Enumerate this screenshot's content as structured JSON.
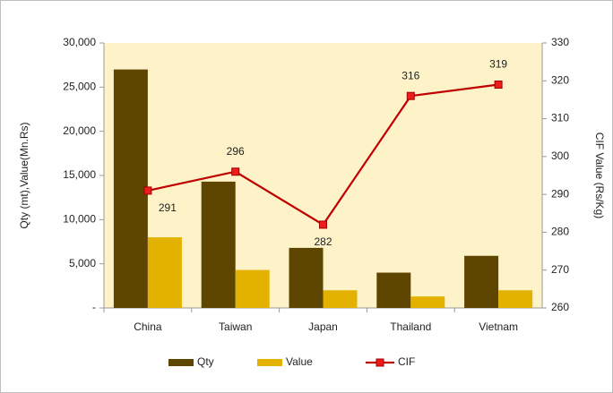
{
  "chart_data": {
    "type": "bar",
    "categories": [
      "China",
      "Taiwan",
      "Japan",
      "Thailand",
      "Vietnam"
    ],
    "series": [
      {
        "name": "Qty",
        "color": "#5e4500",
        "values": [
          27000,
          14300,
          6800,
          4000,
          5900
        ]
      },
      {
        "name": "Value",
        "color": "#e3b100",
        "values": [
          8000,
          4300,
          2000,
          1300,
          2000
        ]
      },
      {
        "name": "CIF",
        "color": "#c00000",
        "type": "line",
        "axis": "y2",
        "values": [
          291,
          296,
          282,
          316,
          319
        ]
      }
    ],
    "ylabel": "Qty (mt),Value(Mn.Rs)",
    "y2label": "CIF Value (Rs/Kg)",
    "ylim": [
      0,
      30000
    ],
    "yticks": [
      {
        "value": 0,
        "label": "-"
      },
      {
        "value": 5000,
        "label": "5,000"
      },
      {
        "value": 10000,
        "label": "10,000"
      },
      {
        "value": 15000,
        "label": "15,000"
      },
      {
        "value": 20000,
        "label": "20,000"
      },
      {
        "value": 25000,
        "label": "25,000"
      },
      {
        "value": 30000,
        "label": "30,000"
      }
    ],
    "y2lim": [
      260,
      330
    ],
    "y2ticks": [
      260,
      270,
      280,
      290,
      300,
      310,
      320,
      330
    ],
    "legend": "bottom"
  }
}
